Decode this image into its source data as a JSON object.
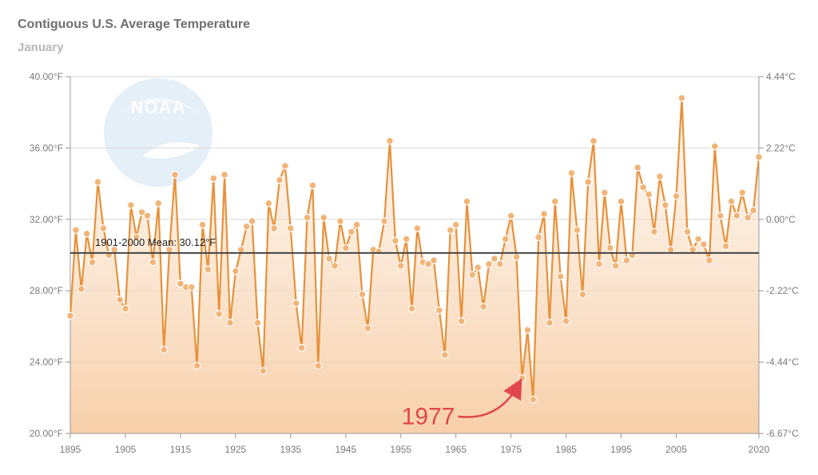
{
  "chart_data": {
    "type": "line",
    "title": "Contiguous U.S. Average Temperature",
    "subtitle": "January",
    "logo_text": "NOAA",
    "x_ticks": [
      "1895",
      "1905",
      "1915",
      "1925",
      "1935",
      "1945",
      "1955",
      "1965",
      "1975",
      "1985",
      "1995",
      "2005",
      "2020"
    ],
    "y_ticks_left": [
      "40.00°F",
      "36.00°F",
      "32.00°F",
      "28.00°F",
      "24.00°F",
      "20.00°F"
    ],
    "y_ticks_right": [
      "4.44°C",
      "2.22°C",
      "0.00°C",
      "-2.22°C",
      "-4.44°C",
      "-6.67°C"
    ],
    "ylim": [
      20,
      40
    ],
    "xlim": [
      1895,
      2020
    ],
    "mean": {
      "label": "1901-2000 Mean: 30.12°F",
      "value": 30.12
    },
    "annotation": {
      "label": "1977",
      "year": 1977
    },
    "grid": true,
    "colors": {
      "line": "#e8913a",
      "marker": "#f2b477",
      "fill": "#f8d3ad",
      "mean": "#444444",
      "annotation": "#e0474c"
    },
    "series": [
      {
        "x": [
          1895,
          1896,
          1897,
          1898,
          1899,
          1900,
          1901,
          1902,
          1903,
          1904,
          1905,
          1906,
          1907,
          1908,
          1909,
          1910,
          1911,
          1912,
          1913,
          1914,
          1915,
          1916,
          1917,
          1918,
          1919,
          1920,
          1921,
          1922,
          1923,
          1924,
          1925,
          1926,
          1927,
          1928,
          1929,
          1930,
          1931,
          1932,
          1933,
          1934,
          1935,
          1936,
          1937,
          1938,
          1939,
          1940,
          1941,
          1942,
          1943,
          1944,
          1945,
          1946,
          1947,
          1948,
          1949,
          1950,
          1951,
          1952,
          1953,
          1954,
          1955,
          1956,
          1957,
          1958,
          1959,
          1960,
          1961,
          1962,
          1963,
          1964,
          1965,
          1966,
          1967,
          1968,
          1969,
          1970,
          1971,
          1972,
          1973,
          1974,
          1975,
          1976,
          1977,
          1978,
          1979,
          1980,
          1981,
          1982,
          1983,
          1984,
          1985,
          1986,
          1987,
          1988,
          1989,
          1990,
          1991,
          1992,
          1993,
          1994,
          1995,
          1996,
          1997,
          1998,
          1999,
          2000,
          2001,
          2002,
          2003,
          2004,
          2005,
          2006,
          2007,
          2008,
          2009,
          2010,
          2011,
          2012,
          2013,
          2014,
          2015,
          2016,
          2017,
          2018,
          2019,
          2020
        ],
        "values": [
          26.6,
          31.4,
          28.1,
          31.2,
          29.6,
          34.1,
          31.5,
          30.0,
          30.3,
          27.5,
          27.0,
          32.8,
          31.0,
          32.4,
          32.2,
          29.6,
          32.9,
          24.7,
          30.3,
          34.5,
          28.4,
          28.2,
          28.2,
          23.8,
          31.7,
          29.2,
          34.3,
          26.7,
          34.5,
          26.2,
          29.1,
          30.3,
          31.6,
          31.9,
          26.2,
          23.5,
          32.9,
          31.5,
          34.2,
          35.0,
          31.5,
          27.3,
          24.8,
          32.1,
          33.9,
          23.8,
          32.1,
          29.8,
          29.4,
          31.9,
          30.4,
          31.3,
          31.7,
          27.8,
          25.9,
          30.3,
          30.2,
          31.9,
          36.4,
          30.8,
          29.4,
          30.9,
          27.0,
          31.5,
          29.6,
          29.5,
          29.7,
          26.9,
          24.4,
          31.4,
          31.7,
          26.3,
          33.0,
          28.9,
          29.3,
          27.1,
          29.5,
          29.8,
          29.5,
          30.9,
          32.2,
          29.9,
          23.1,
          25.8,
          21.9,
          31.0,
          32.3,
          26.2,
          33.0,
          28.8,
          26.3,
          34.6,
          31.4,
          27.8,
          34.1,
          36.4,
          29.5,
          33.5,
          30.4,
          29.4,
          33.0,
          29.7,
          30.0,
          34.9,
          33.8,
          33.4,
          31.3,
          34.4,
          32.8,
          30.3,
          33.3,
          38.8,
          31.3,
          30.3,
          30.9,
          30.6,
          29.7,
          36.1,
          32.2,
          30.5,
          33.0,
          32.2,
          33.5,
          32.1,
          32.5,
          35.5
        ]
      }
    ]
  }
}
